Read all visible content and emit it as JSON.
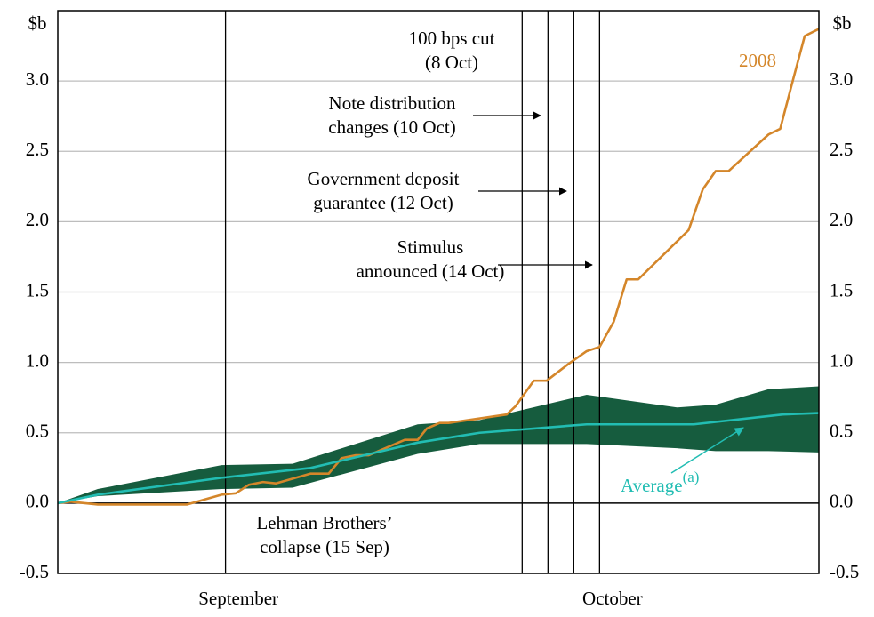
{
  "chart_data": {
    "type": "line",
    "y_unit_left": "$b",
    "y_unit_right": "$b",
    "xlim": [
      2,
      61
    ],
    "xticks": [
      {
        "value": 16,
        "label": "September"
      },
      {
        "value": 45,
        "label": "October"
      }
    ],
    "ylim": [
      -0.5,
      3.5
    ],
    "yticks": [
      -0.5,
      {
        "value": 0,
        "label": "0.0"
      },
      0.5,
      {
        "value": 1,
        "label": "1.0"
      },
      1.5,
      {
        "value": 2,
        "label": "2.0"
      },
      2.5,
      {
        "value": 3,
        "label": "3.0"
      }
    ],
    "y2lim": [
      -0.5,
      3.5
    ],
    "y2ticks": [
      -0.5,
      {
        "value": 0,
        "label": "0.0"
      },
      0.5,
      {
        "value": 1,
        "label": "1.0"
      },
      1.5,
      {
        "value": 2,
        "label": "2.0"
      },
      2.5,
      {
        "value": 3,
        "label": "3.0"
      }
    ],
    "grid": true,
    "band": {
      "color": "#165c3e",
      "x": [
        2,
        5.1,
        14.7,
        20.2,
        29.9,
        34.7,
        43,
        50,
        53,
        57.1,
        61
      ],
      "upper": [
        0,
        0.1,
        0.27,
        0.28,
        0.56,
        0.59,
        0.77,
        0.68,
        0.7,
        0.81,
        0.83
      ],
      "lower": [
        0,
        0.05,
        0.1,
        0.11,
        0.35,
        0.42,
        0.42,
        0.39,
        0.37,
        0.37,
        0.36
      ]
    },
    "series": [
      {
        "name": "2008",
        "color": "#d4862a",
        "x": [
          2.0,
          3.0,
          5.1,
          7.9,
          9.9,
          12.0,
          14.7,
          15.8,
          16.8,
          17.9,
          18.9,
          21.6,
          23.0,
          24.0,
          25.1,
          26.1,
          28.9,
          29.9,
          30.6,
          31.6,
          32.3,
          36.8,
          37.5,
          38.9,
          39.9,
          41.6,
          43.0,
          44.0,
          45.1,
          46.1,
          47.0,
          50.9,
          52.0,
          53.0,
          54.0,
          57.1,
          58.0,
          59.0,
          59.9,
          61.0
        ],
        "values": [
          0,
          0.01,
          -0.01,
          -0.01,
          -0.01,
          -0.01,
          0.06,
          0.07,
          0.13,
          0.15,
          0.14,
          0.21,
          0.21,
          0.32,
          0.34,
          0.34,
          0.45,
          0.45,
          0.53,
          0.57,
          0.57,
          0.63,
          0.69,
          0.87,
          0.87,
          0.99,
          1.08,
          1.11,
          1.29,
          1.59,
          1.59,
          1.94,
          2.23,
          2.36,
          2.36,
          2.62,
          2.66,
          3.01,
          3.32,
          3.37
        ]
      },
      {
        "name": "Average",
        "name_sup": "(a)",
        "color": "#22bdb3",
        "x": [
          2,
          5.1,
          14.7,
          21.6,
          29.9,
          34.7,
          43,
          51.3,
          58.2,
          61
        ],
        "values": [
          0,
          0.06,
          0.18,
          0.25,
          0.43,
          0.5,
          0.56,
          0.56,
          0.63,
          0.64
        ]
      }
    ],
    "events": [
      {
        "x": 15,
        "label": [
          "Lehman Brothers’",
          "collapse (15 Sep)"
        ]
      },
      {
        "x": 38,
        "label": [
          "100 bps cut",
          "(8 Oct)"
        ]
      },
      {
        "x": 40,
        "label": [
          "Note distribution",
          "changes (10 Oct)"
        ]
      },
      {
        "x": 42,
        "label": [
          "Government deposit",
          "guarantee (12 Oct)"
        ]
      },
      {
        "x": 44,
        "label": [
          "Stimulus",
          "announced (14 Oct)"
        ]
      }
    ]
  }
}
